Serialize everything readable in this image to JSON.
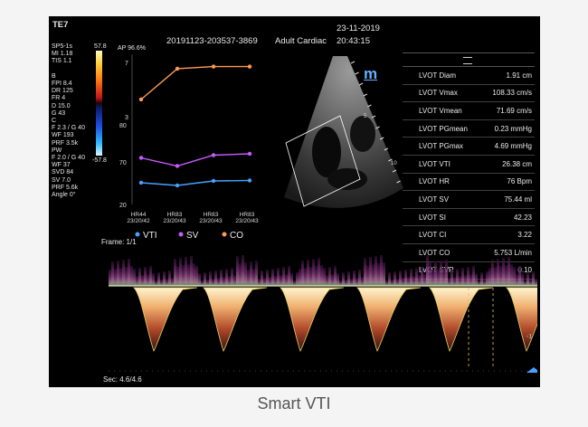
{
  "top": {
    "probe": "TE7",
    "study_id": "20191123-203537-3869",
    "exam_type": "Adult Cardiac",
    "date": "23-11-2019",
    "time": "20:43:15"
  },
  "left_params": [
    "SP5-1s",
    "MI 1.18",
    "TIS 1.1",
    "",
    "B",
    "FPI 8.4",
    "DR 125",
    "FR 4",
    "D 15.0",
    "G 43",
    "C",
    "F 2.3 / G 40",
    "WF 193",
    "PRF 3.5k",
    "PW",
    "F 2.0 / G 40",
    "WF 37",
    "SVD 84",
    "SV 7.0",
    "PRF 5.6k",
    "Angle 0°"
  ],
  "colorbar": {
    "top_label": "57.8",
    "bottom_label": "-57.8"
  },
  "trend": {
    "ap_label": "AP 96.6%",
    "co_axis": [
      "7",
      "3"
    ],
    "sv_axis": [
      "80",
      "70"
    ],
    "vti_axis": [
      "20"
    ],
    "x_labels": [
      {
        "line1": "HR44",
        "line2": "23/20/42"
      },
      {
        "line1": "HR83",
        "line2": "23/20/43"
      },
      {
        "line1": "HR83",
        "line2": "23/20/43"
      },
      {
        "line1": "HR83",
        "line2": "23/20/43"
      }
    ],
    "legend": [
      "VTI",
      "SV",
      "CO"
    ],
    "colors": {
      "vti": "#4aa0ff",
      "sv": "#c85cff",
      "co": "#ff9a55"
    },
    "chart_data": {
      "type": "line",
      "x": [
        "23/20/42",
        "23/20/43",
        "23/20/43",
        "23/20/43"
      ],
      "series": [
        {
          "name": "CO",
          "values": [
            3.4,
            6.3,
            6.5,
            6.5
          ]
        },
        {
          "name": "SV",
          "values": [
            75.5,
            72.5,
            76.5,
            77.0
          ]
        },
        {
          "name": "VTI",
          "values": [
            24.8,
            24.2,
            25.2,
            25.3
          ]
        }
      ]
    }
  },
  "frame_label": "Frame: 1/1",
  "sec_label": "Sec: 4.6/4.6",
  "logo_label": "m",
  "measurements": [
    {
      "name": "LVOT Diam",
      "value": "1.91 cm"
    },
    {
      "name": "LVOT Vmax",
      "value": "108.33 cm/s"
    },
    {
      "name": "LVOT Vmean",
      "value": "71.69 cm/s"
    },
    {
      "name": "LVOT PGmean",
      "value": "0.23 mmHg"
    },
    {
      "name": "LVOT PGmax",
      "value": "4.69 mmHg"
    },
    {
      "name": "LVOT VTI",
      "value": "26.38 cm"
    },
    {
      "name": "LVOT HR",
      "value": "76 Bpm"
    },
    {
      "name": "LVOT SV",
      "value": "75.44 ml"
    },
    {
      "name": "LVOT SI",
      "value": "42.23"
    },
    {
      "name": "LVOT CI",
      "value": "3.22"
    },
    {
      "name": "LVOT CO",
      "value": "5.753 L/min"
    },
    {
      "name": "LVOT SVR",
      "value": "0.10"
    }
  ],
  "depth_marks": [
    "5",
    "10"
  ],
  "doppler_scale": [
    "-1",
    "-"
  ],
  "caption": "Smart VTI"
}
